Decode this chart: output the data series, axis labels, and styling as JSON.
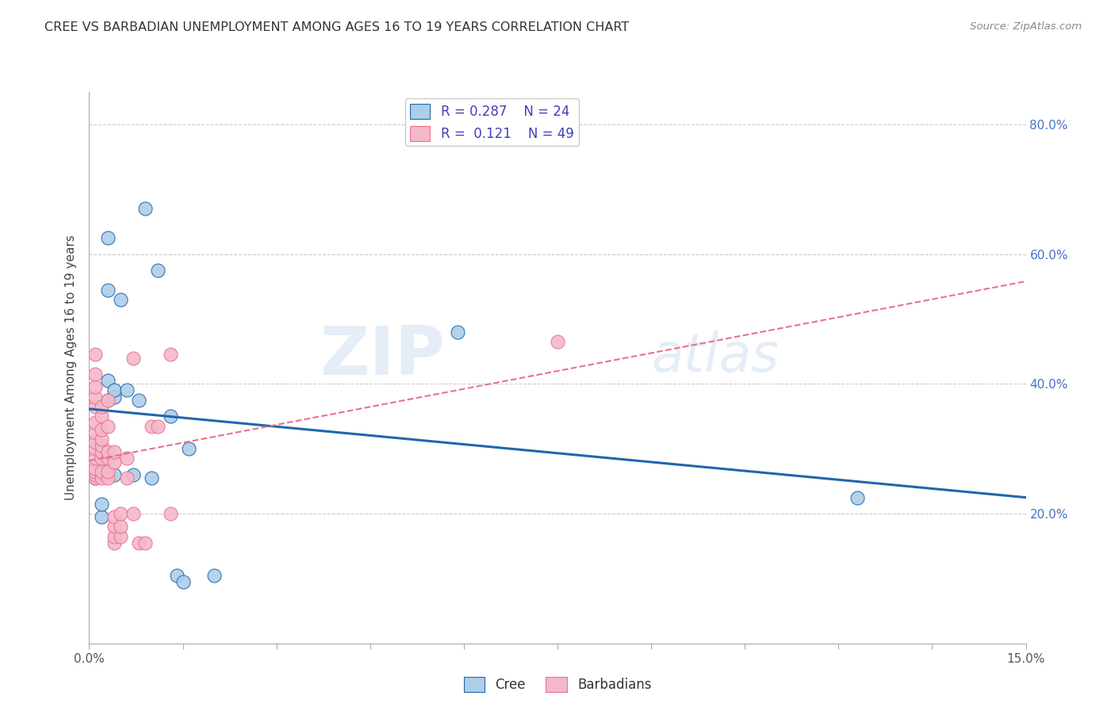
{
  "title": "CREE VS BARBADIAN UNEMPLOYMENT AMONG AGES 16 TO 19 YEARS CORRELATION CHART",
  "source": "Source: ZipAtlas.com",
  "ylabel": "Unemployment Among Ages 16 to 19 years",
  "xlim": [
    0.0,
    0.15
  ],
  "ylim": [
    0.0,
    0.85
  ],
  "watermark": "ZIPatlas",
  "legend_r_cree": "R = 0.287",
  "legend_n_cree": "N = 24",
  "legend_r_barb": "R =  0.121",
  "legend_n_barb": "N = 49",
  "cree_color": "#aecde8",
  "barb_color": "#f4b8cb",
  "trendline_cree_color": "#2166ac",
  "trendline_barb_color": "#e8728a",
  "legend_color": "#4040bb",
  "cree_scatter": [
    [
      0.001,
      0.255
    ],
    [
      0.002,
      0.195
    ],
    [
      0.002,
      0.215
    ],
    [
      0.003,
      0.375
    ],
    [
      0.003,
      0.405
    ],
    [
      0.003,
      0.545
    ],
    [
      0.003,
      0.625
    ],
    [
      0.004,
      0.26
    ],
    [
      0.004,
      0.38
    ],
    [
      0.004,
      0.39
    ],
    [
      0.005,
      0.53
    ],
    [
      0.006,
      0.39
    ],
    [
      0.007,
      0.26
    ],
    [
      0.008,
      0.375
    ],
    [
      0.009,
      0.67
    ],
    [
      0.01,
      0.255
    ],
    [
      0.011,
      0.575
    ],
    [
      0.013,
      0.35
    ],
    [
      0.014,
      0.105
    ],
    [
      0.015,
      0.095
    ],
    [
      0.016,
      0.3
    ],
    [
      0.02,
      0.105
    ],
    [
      0.059,
      0.48
    ],
    [
      0.123,
      0.225
    ]
  ],
  "barb_scatter": [
    [
      0.001,
      0.255
    ],
    [
      0.001,
      0.26
    ],
    [
      0.001,
      0.265
    ],
    [
      0.001,
      0.27
    ],
    [
      0.001,
      0.285
    ],
    [
      0.001,
      0.3
    ],
    [
      0.001,
      0.31
    ],
    [
      0.001,
      0.325
    ],
    [
      0.001,
      0.34
    ],
    [
      0.001,
      0.365
    ],
    [
      0.001,
      0.38
    ],
    [
      0.001,
      0.395
    ],
    [
      0.001,
      0.415
    ],
    [
      0.001,
      0.445
    ],
    [
      0.002,
      0.255
    ],
    [
      0.002,
      0.265
    ],
    [
      0.002,
      0.285
    ],
    [
      0.002,
      0.295
    ],
    [
      0.002,
      0.305
    ],
    [
      0.002,
      0.315
    ],
    [
      0.002,
      0.33
    ],
    [
      0.002,
      0.35
    ],
    [
      0.002,
      0.365
    ],
    [
      0.003,
      0.255
    ],
    [
      0.003,
      0.265
    ],
    [
      0.003,
      0.285
    ],
    [
      0.003,
      0.295
    ],
    [
      0.003,
      0.335
    ],
    [
      0.003,
      0.375
    ],
    [
      0.004,
      0.155
    ],
    [
      0.004,
      0.165
    ],
    [
      0.004,
      0.18
    ],
    [
      0.004,
      0.195
    ],
    [
      0.004,
      0.28
    ],
    [
      0.004,
      0.295
    ],
    [
      0.005,
      0.165
    ],
    [
      0.005,
      0.18
    ],
    [
      0.005,
      0.2
    ],
    [
      0.006,
      0.255
    ],
    [
      0.006,
      0.285
    ],
    [
      0.007,
      0.2
    ],
    [
      0.007,
      0.44
    ],
    [
      0.008,
      0.155
    ],
    [
      0.009,
      0.155
    ],
    [
      0.01,
      0.335
    ],
    [
      0.011,
      0.335
    ],
    [
      0.013,
      0.2
    ],
    [
      0.013,
      0.445
    ],
    [
      0.075,
      0.465
    ]
  ]
}
